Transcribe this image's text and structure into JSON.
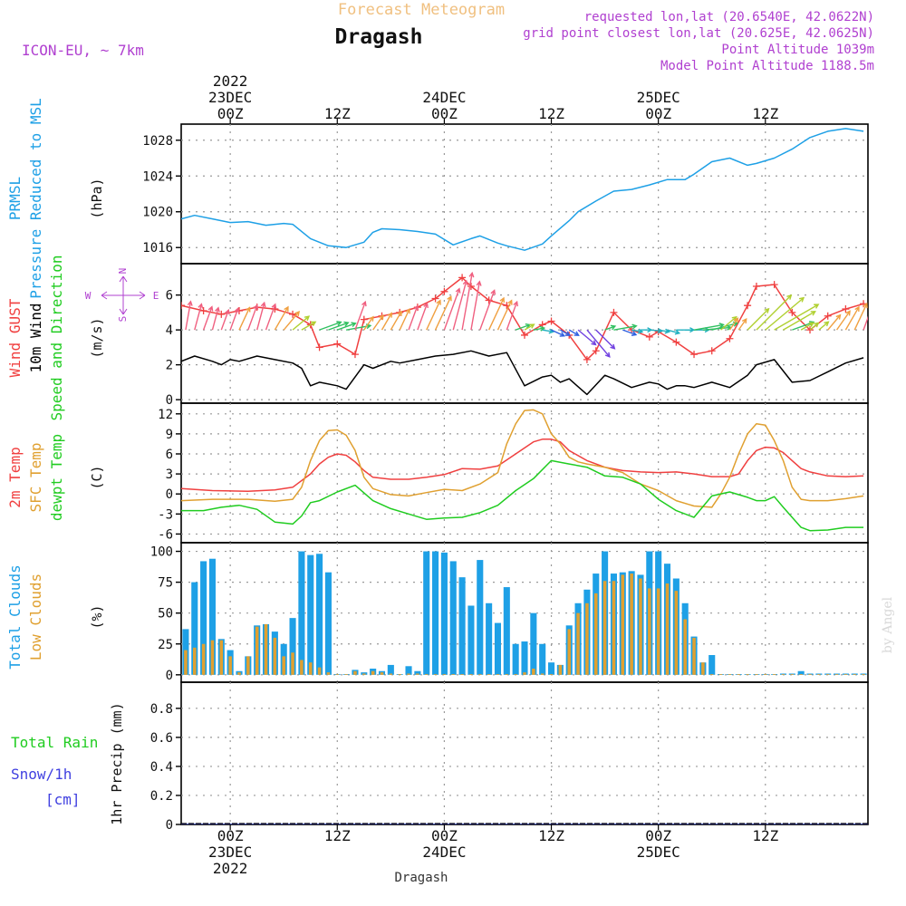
{
  "header": {
    "subtitle": "Forecast Meteogram",
    "title": "Dragash",
    "model": "ICON-EU, ~ 7km",
    "requested": "requested lon,lat (20.6540E, 42.0622N)",
    "grid_point": "grid point closest lon,lat (20.625E, 42.0625N)",
    "point_altitude": "Point Altitude 1039m",
    "model_altitude": "Model Point Altitude 1188.5m"
  },
  "footer": {
    "location": "Dragash",
    "credit": "by Angel"
  },
  "colors": {
    "pressure": "#1ea0e6",
    "gust": "#f04040",
    "wind": "#000000",
    "temp2m": "#f04040",
    "sfc": "#e0a030",
    "dewpt": "#20cc20",
    "total_clouds": "#1ea0e6",
    "low_clouds": "#e0a030",
    "rain": "#20cc20",
    "snow": "#4040e0",
    "header_purple": "#b040d0",
    "subtitle": "#f0c080"
  },
  "x_axis": {
    "top": [
      {
        "t": 0,
        "lines": [
          "2022",
          "23DEC",
          "00Z"
        ]
      },
      {
        "t": 12,
        "lines": [
          "12Z"
        ]
      },
      {
        "t": 24,
        "lines": [
          "24DEC",
          "00Z"
        ]
      },
      {
        "t": 36,
        "lines": [
          "12Z"
        ]
      },
      {
        "t": 48,
        "lines": [
          "25DEC",
          "00Z"
        ]
      },
      {
        "t": 60,
        "lines": [
          "12Z"
        ]
      }
    ],
    "bottom": [
      {
        "t": 0,
        "lines": [
          "00Z",
          "23DEC",
          "2022"
        ]
      },
      {
        "t": 12,
        "lines": [
          "12Z"
        ]
      },
      {
        "t": 24,
        "lines": [
          "00Z",
          "24DEC"
        ]
      },
      {
        "t": 36,
        "lines": [
          "12Z"
        ]
      },
      {
        "t": 48,
        "lines": [
          "00Z",
          "25DEC"
        ]
      },
      {
        "t": 60,
        "lines": [
          "12Z"
        ]
      }
    ]
  },
  "wind_compass": {
    "n": "N",
    "s": "S",
    "w": "W",
    "e": "E"
  },
  "chart_data": [
    {
      "type": "line",
      "title": "PRMSL Pressure Reduced to MSL",
      "ylabel": "(hPa)",
      "label_lines": [
        {
          "text": "PRMSL",
          "color": "#1ea0e6"
        },
        {
          "text": "Pressure Reduced to MSL",
          "color": "#1ea0e6"
        }
      ],
      "ylim": [
        1014.2,
        1029.8
      ],
      "yticks": [
        1016,
        1020,
        1024,
        1028
      ],
      "x_range": [
        -5.5,
        71.5
      ],
      "series": [
        {
          "name": "PRMSL",
          "color": "#1ea0e6",
          "x": [
            -5.5,
            -4,
            -2,
            0,
            2,
            4,
            6,
            7,
            9,
            11,
            13,
            15,
            16,
            17,
            19,
            21,
            23,
            25,
            27,
            28,
            30,
            31,
            33,
            35,
            36,
            38,
            39,
            41,
            43,
            45,
            47,
            49,
            51,
            52,
            54,
            56,
            58,
            59,
            61,
            63,
            65,
            67,
            69,
            71
          ],
          "y": [
            1019.2,
            1019.6,
            1019.2,
            1018.8,
            1018.9,
            1018.5,
            1018.7,
            1018.6,
            1017.0,
            1016.2,
            1016.0,
            1016.6,
            1017.7,
            1018.1,
            1018.0,
            1017.8,
            1017.5,
            1016.3,
            1017.0,
            1017.3,
            1016.5,
            1016.2,
            1015.7,
            1016.4,
            1017.3,
            1019.0,
            1020.0,
            1021.2,
            1022.3,
            1022.5,
            1023.0,
            1023.6,
            1023.6,
            1024.2,
            1025.6,
            1026.0,
            1025.2,
            1025.4,
            1026.0,
            1027.0,
            1028.3,
            1029.0,
            1029.3,
            1029.0
          ]
        }
      ]
    },
    {
      "type": "line",
      "title": "Wind GUST, 10m Wind Speed and Direction",
      "ylabel": "(m/s)",
      "label_lines": [
        {
          "text": "Wind GUST",
          "color": "#f04040"
        },
        {
          "text": "10m Wind",
          "color": "#000000"
        },
        {
          "text": "Speed and Direction",
          "color": "#20cc20"
        }
      ],
      "ylim": [
        -0.2,
        7.8
      ],
      "yticks": [
        0,
        2,
        4,
        6
      ],
      "x_range": [
        -5.5,
        71.5
      ],
      "series": [
        {
          "name": "Wind GUST",
          "color": "#f04040",
          "x": [
            -5.5,
            -3,
            -1,
            1,
            3,
            5,
            7,
            9,
            10,
            12,
            14,
            15,
            17,
            19,
            21,
            23,
            24,
            26,
            27,
            29,
            31,
            33,
            35,
            36,
            38,
            40,
            41,
            43,
            45,
            47,
            48,
            50,
            52,
            54,
            56,
            58,
            59,
            61,
            63,
            65,
            67,
            69,
            71
          ],
          "y": [
            5.4,
            5.1,
            4.9,
            5.1,
            5.3,
            5.2,
            4.9,
            4.3,
            3.0,
            3.2,
            2.6,
            4.6,
            4.8,
            5.0,
            5.3,
            5.8,
            6.2,
            7.0,
            6.5,
            5.7,
            5.4,
            3.7,
            4.3,
            4.5,
            3.7,
            2.3,
            2.8,
            5.0,
            4.0,
            3.6,
            3.9,
            3.3,
            2.6,
            2.8,
            3.5,
            5.4,
            6.5,
            6.6,
            5.0,
            4.0,
            4.8,
            5.2,
            5.5
          ]
        },
        {
          "name": "10m Wind",
          "color": "#000000",
          "x": [
            -5.5,
            -4,
            -2,
            -1,
            0,
            1,
            3,
            5,
            7,
            8,
            9,
            10,
            12,
            13,
            15,
            16,
            18,
            19,
            21,
            23,
            25,
            27,
            29,
            31,
            33,
            35,
            36,
            37,
            38,
            40,
            42,
            43,
            45,
            47,
            48,
            49,
            50,
            51,
            52,
            54,
            56,
            58,
            59,
            61,
            63,
            65,
            67,
            69,
            71
          ],
          "y": [
            2.2,
            2.5,
            2.2,
            2.0,
            2.3,
            2.2,
            2.5,
            2.3,
            2.1,
            1.8,
            0.8,
            1.0,
            0.8,
            0.6,
            2.0,
            1.8,
            2.2,
            2.1,
            2.3,
            2.5,
            2.6,
            2.8,
            2.5,
            2.7,
            0.8,
            1.3,
            1.4,
            1.0,
            1.2,
            0.3,
            1.4,
            1.2,
            0.7,
            1.0,
            0.9,
            0.6,
            0.8,
            0.8,
            0.7,
            1.0,
            0.7,
            1.4,
            2.0,
            2.3,
            1.0,
            1.1,
            1.6,
            2.1,
            2.4
          ]
        }
      ]
    },
    {
      "type": "line",
      "title": "2m Temp, SFC Temp, dewpt Temp",
      "ylabel": "(C)",
      "label_lines": [
        {
          "text": "2m Temp",
          "color": "#f04040"
        },
        {
          "text": "SFC Temp",
          "color": "#e0a030"
        },
        {
          "text": "dewpt Temp",
          "color": "#20cc20"
        }
      ],
      "ylim": [
        -7.3,
        13.6
      ],
      "yticks": [
        -6,
        -3,
        0,
        3,
        6,
        9,
        12
      ],
      "x_range": [
        -5.5,
        71.5
      ],
      "series": [
        {
          "name": "2m Temp",
          "color": "#f04040",
          "x": [
            -5.5,
            -2,
            2,
            5,
            7,
            9,
            10,
            11,
            12,
            13,
            14,
            15,
            16,
            18,
            20,
            22,
            24,
            26,
            28,
            30,
            32,
            34,
            35,
            36,
            37,
            38,
            40,
            42,
            44,
            46,
            48,
            50,
            52,
            54,
            56,
            57,
            58,
            59,
            60,
            61,
            62,
            63,
            64,
            65,
            67,
            69,
            71
          ],
          "y": [
            0.8,
            0.5,
            0.4,
            0.6,
            1.0,
            3.0,
            4.5,
            5.5,
            6.0,
            5.8,
            4.8,
            3.5,
            2.5,
            2.2,
            2.2,
            2.5,
            2.9,
            3.8,
            3.7,
            4.2,
            6.0,
            7.8,
            8.2,
            8.2,
            7.8,
            6.5,
            5.0,
            4.0,
            3.5,
            3.3,
            3.2,
            3.3,
            3.0,
            2.6,
            2.6,
            3.0,
            5.0,
            6.5,
            7.0,
            6.9,
            6.2,
            5.0,
            3.8,
            3.3,
            2.7,
            2.6,
            2.7
          ]
        },
        {
          "name": "SFC Temp",
          "color": "#e0a030",
          "x": [
            -5.5,
            -2,
            2,
            5,
            7,
            8,
            9,
            10,
            11,
            12,
            13,
            14,
            15,
            16,
            18,
            20,
            22,
            24,
            26,
            28,
            30,
            31,
            32,
            33,
            34,
            35,
            36,
            37,
            38,
            39,
            40,
            42,
            44,
            46,
            48,
            50,
            52,
            54,
            55,
            56,
            57,
            58,
            59,
            60,
            61,
            62,
            63,
            64,
            65,
            67,
            69,
            71
          ],
          "y": [
            -1.0,
            -0.8,
            -0.8,
            -1.1,
            -0.8,
            1.0,
            5.0,
            8.0,
            9.5,
            9.6,
            8.8,
            6.5,
            2.5,
            0.8,
            -0.1,
            -0.3,
            0.2,
            0.7,
            0.5,
            1.5,
            3.2,
            7.5,
            10.5,
            12.5,
            12.6,
            12.0,
            9.0,
            7.5,
            5.5,
            4.8,
            4.5,
            4.0,
            3.2,
            1.5,
            0.5,
            -1.0,
            -1.8,
            -2.0,
            0.0,
            2.5,
            6.0,
            9.0,
            10.5,
            10.3,
            8.0,
            5.0,
            1.0,
            -0.8,
            -1.0,
            -1.0,
            -0.7,
            -0.3
          ]
        },
        {
          "name": "dewpt Temp",
          "color": "#20cc20",
          "x": [
            -5.5,
            -3,
            -1,
            1,
            3,
            5,
            7,
            8,
            9,
            10,
            12,
            14,
            16,
            18,
            20,
            22,
            24,
            26,
            28,
            30,
            32,
            34,
            36,
            38,
            40,
            42,
            44,
            46,
            48,
            50,
            52,
            54,
            56,
            58,
            59,
            60,
            61,
            62,
            63,
            64,
            65,
            67,
            69,
            71
          ],
          "y": [
            -2.5,
            -2.5,
            -2.0,
            -1.7,
            -2.3,
            -4.2,
            -4.5,
            -3.3,
            -1.3,
            -1.0,
            0.3,
            1.3,
            -1.0,
            -2.2,
            -3.0,
            -3.8,
            -3.6,
            -3.5,
            -2.8,
            -1.7,
            0.5,
            2.3,
            5.0,
            4.5,
            4.0,
            2.7,
            2.5,
            1.5,
            -0.8,
            -2.5,
            -3.5,
            -0.3,
            0.3,
            -0.5,
            -1.0,
            -1.0,
            -0.4,
            -2.0,
            -3.5,
            -5.0,
            -5.5,
            -5.4,
            -5.0,
            -5.0
          ]
        }
      ]
    },
    {
      "type": "bar",
      "title": "Total Clouds, Low Clouds",
      "ylabel": "(%)",
      "label_lines": [
        {
          "text": "Total Clouds",
          "color": "#1ea0e6"
        },
        {
          "text": "Low Clouds",
          "color": "#e0a030"
        }
      ],
      "ylim": [
        -6,
        107
      ],
      "yticks": [
        0,
        25,
        50,
        75,
        100
      ],
      "x_range": [
        -5.5,
        71.5
      ],
      "x_start": -5,
      "x_step": 1,
      "series": [
        {
          "name": "Total Clouds",
          "color": "#1ea0e6",
          "values": [
            37,
            75,
            92,
            94,
            29,
            20,
            3,
            15,
            40,
            41,
            35,
            25,
            46,
            100,
            97,
            98,
            83,
            0,
            0,
            4,
            2,
            5,
            3,
            8,
            0,
            7,
            3,
            100,
            100,
            99,
            92,
            79,
            56,
            93,
            58,
            42,
            71,
            25,
            27,
            50,
            25,
            10,
            8,
            40,
            58,
            69,
            82,
            100,
            82,
            83,
            84,
            81,
            100,
            100,
            90,
            78,
            58,
            31,
            10,
            16,
            0,
            0,
            0,
            0,
            0,
            0,
            0,
            1,
            1,
            3,
            1,
            1,
            1,
            1,
            1,
            1,
            1
          ]
        },
        {
          "name": "Low Clouds",
          "color": "#e0a030",
          "values": [
            20,
            22,
            25,
            28,
            28,
            15,
            2,
            15,
            39,
            41,
            30,
            15,
            18,
            12,
            10,
            6,
            2,
            0,
            0,
            3,
            1,
            3,
            2,
            1,
            0,
            1,
            1,
            0,
            0,
            0,
            0,
            0,
            0,
            0,
            0,
            0,
            0,
            0,
            2,
            5,
            1,
            0,
            8,
            37,
            50,
            58,
            66,
            76,
            76,
            81,
            82,
            78,
            70,
            70,
            74,
            68,
            45,
            30,
            10,
            0,
            0,
            0,
            0,
            0,
            0,
            0,
            0,
            0,
            0,
            0,
            0,
            0,
            0,
            0,
            0,
            0,
            0
          ]
        }
      ]
    },
    {
      "type": "line",
      "title": "1hr Precip (mm)",
      "ylabel": "1hr Precip (mm)",
      "label_lines": [
        {
          "text": "Total  Rain",
          "color": "#20cc20"
        },
        {
          "text": "Snow/1h",
          "color": "#4040e0"
        },
        {
          "text": "[cm]",
          "color": "#4040e0"
        }
      ],
      "ylim": [
        0,
        0.98
      ],
      "yticks": [
        0,
        0.2,
        0.4,
        0.6,
        0.8
      ],
      "x_range": [
        -5.5,
        71.5
      ],
      "series": [
        {
          "name": "Total Rain",
          "color": "#20cc20",
          "x": [
            -5.5,
            71.5
          ],
          "y": [
            0,
            0
          ]
        },
        {
          "name": "Snow/1h",
          "color": "#4040e0",
          "x": [
            -5.5,
            71.5
          ],
          "y": [
            0,
            0
          ]
        }
      ]
    }
  ],
  "wind_arrows": {
    "color_ramp": [
      "#f06080",
      "#f0a040",
      "#b0d030",
      "#30c060",
      "#20b0c0",
      "#3060e0",
      "#7040e0"
    ],
    "x": [
      -5,
      -4,
      -3,
      -2,
      -1,
      0,
      1,
      2,
      3,
      4,
      5,
      6,
      7,
      8,
      10,
      11,
      12,
      13,
      14,
      15,
      16,
      17,
      18,
      19,
      20,
      21,
      22,
      23,
      24,
      25,
      26,
      27,
      28,
      29,
      30,
      31,
      32,
      33,
      34,
      35,
      36,
      37,
      38,
      39,
      40,
      41,
      42,
      43,
      44,
      45,
      46,
      47,
      48,
      49,
      50,
      51,
      52,
      53,
      54,
      55,
      56,
      57,
      58,
      59,
      60,
      61,
      62,
      63,
      64,
      65,
      66,
      67,
      68,
      69,
      70,
      71
    ],
    "dir_deg": [
      190,
      195,
      200,
      195,
      200,
      200,
      205,
      200,
      195,
      200,
      210,
      220,
      230,
      240,
      250,
      250,
      250,
      260,
      200,
      215,
      215,
      210,
      210,
      205,
      200,
      200,
      205,
      205,
      200,
      195,
      190,
      190,
      200,
      205,
      205,
      200,
      250,
      240,
      260,
      280,
      295,
      300,
      300,
      310,
      320,
      315,
      250,
      260,
      290,
      280,
      270,
      275,
      280,
      285,
      270,
      270,
      260,
      265,
      255,
      230,
      215,
      215,
      225,
      225,
      230,
      240,
      240,
      250,
      240,
      230,
      230,
      220,
      215,
      210,
      205,
      200
    ]
  }
}
